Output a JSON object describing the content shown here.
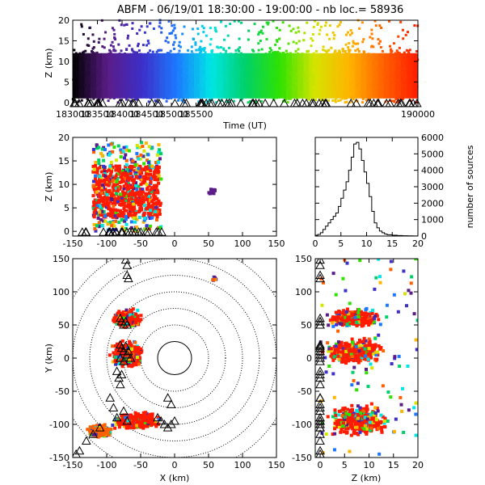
{
  "chart_data": {
    "title": "ABFM - 06/19/01 18:30:00 - 19:00:00 - nb loc.=  58936",
    "panels": [
      {
        "id": "time_height",
        "type": "scatter",
        "xlabel": "Time (UT)",
        "ylabel": "Z (km)",
        "xlim": [
          183000,
          190000
        ],
        "ylim": [
          -1,
          20
        ],
        "x_ticks": [
          183000,
          183500,
          184000,
          184500,
          185000,
          185500,
          190000
        ],
        "y_ticks": [
          0,
          5,
          10,
          15,
          20
        ],
        "color_by": "time",
        "colormap": [
          "#000000",
          "#5a1c86",
          "#3d2fc8",
          "#1d78ff",
          "#00e6e6",
          "#00d06a",
          "#2fe200",
          "#d4e400",
          "#ffb400",
          "#ff6000",
          "#ff1a00"
        ],
        "dense_band_z": [
          0,
          13
        ],
        "sparse_points_z_range": [
          13,
          20
        ]
      },
      {
        "id": "xz_projection",
        "type": "scatter",
        "xlabel": "",
        "ylabel": "Z (km)",
        "xlim": [
          -150,
          150
        ],
        "ylim": [
          -1,
          20
        ],
        "x_ticks": [
          -150,
          -100,
          -50,
          0,
          50,
          100,
          150
        ],
        "y_ticks": [
          0,
          5,
          10,
          15,
          20
        ],
        "clusters": [
          {
            "x": [
              -120,
              -20
            ],
            "z": [
              0,
              19
            ],
            "dominant_color": "#ff1a00"
          },
          {
            "x": [
              50,
              60
            ],
            "z": [
              8,
              9
            ],
            "dominant_color": "#5a1c86"
          }
        ]
      },
      {
        "id": "height_histogram",
        "type": "line",
        "xlabel": "",
        "ylabel": "number of sources",
        "xlim": [
          0,
          20
        ],
        "ylim": [
          0,
          6000
        ],
        "x_ticks": [
          0,
          5,
          10,
          15,
          20
        ],
        "y_ticks": [
          0,
          1000,
          2000,
          3000,
          4000,
          5000,
          6000
        ],
        "x": [
          0,
          0.5,
          1,
          1.5,
          2,
          2.5,
          3,
          3.5,
          4,
          4.5,
          5,
          5.5,
          6,
          6.5,
          7,
          7.5,
          8,
          8.5,
          9,
          9.5,
          10,
          10.5,
          11,
          11.5,
          12,
          12.5,
          13,
          13.5,
          14,
          15,
          16,
          17,
          18,
          19,
          20
        ],
        "y": [
          50,
          100,
          200,
          400,
          600,
          800,
          1000,
          1200,
          1400,
          1800,
          2300,
          2800,
          3300,
          4000,
          4800,
          5600,
          5700,
          5300,
          4600,
          3900,
          3200,
          2400,
          1500,
          800,
          500,
          300,
          200,
          120,
          80,
          50,
          30,
          20,
          10,
          5,
          0
        ]
      },
      {
        "id": "plan_view",
        "type": "scatter",
        "xlabel": "X (km)",
        "ylabel": "Y (km)",
        "xlim": [
          -150,
          150
        ],
        "ylim": [
          -150,
          150
        ],
        "x_ticks": [
          -150,
          -100,
          -50,
          0,
          50,
          100,
          150
        ],
        "y_ticks": [
          -150,
          -100,
          -50,
          0,
          50,
          100,
          150
        ],
        "range_rings_km": [
          25,
          50,
          75,
          100,
          125,
          150,
          175
        ],
        "solid_ring_km": 25,
        "stations": [
          [
            -72,
            148
          ],
          [
            -70,
            140
          ],
          [
            -70,
            125
          ],
          [
            -68,
            120
          ],
          [
            -80,
            60
          ],
          [
            -78,
            55
          ],
          [
            -75,
            50
          ],
          [
            -72,
            55
          ],
          [
            -70,
            50
          ],
          [
            -80,
            20
          ],
          [
            -78,
            15
          ],
          [
            -75,
            10
          ],
          [
            -72,
            18
          ],
          [
            -70,
            5
          ],
          [
            -68,
            10
          ],
          [
            -65,
            0
          ],
          [
            -80,
            0
          ],
          [
            -75,
            -5
          ],
          [
            -85,
            -20
          ],
          [
            -82,
            -30
          ],
          [
            -80,
            -40
          ],
          [
            -78,
            -25
          ],
          [
            -95,
            -60
          ],
          [
            -90,
            -75
          ],
          [
            -85,
            -90
          ],
          [
            -75,
            -80
          ],
          [
            -70,
            -95
          ],
          [
            -110,
            -105
          ],
          [
            -120,
            -115
          ],
          [
            -130,
            -125
          ],
          [
            -140,
            -140
          ],
          [
            -145,
            -145
          ],
          [
            -20,
            -95
          ],
          [
            -15,
            -100
          ],
          [
            -10,
            -105
          ],
          [
            -5,
            -100
          ],
          [
            -25,
            -90
          ],
          [
            0,
            -95
          ],
          [
            -10,
            -60
          ],
          [
            -5,
            -70
          ]
        ],
        "clusters": [
          {
            "x_center": -70,
            "y_center": 60,
            "x_span": 50,
            "y_span": 30,
            "color": "#ff1a00"
          },
          {
            "x_center": -70,
            "y_center": 5,
            "x_span": 55,
            "y_span": 45,
            "color": "#ff1a00"
          },
          {
            "x_center": -55,
            "y_center": -95,
            "x_span": 85,
            "y_span": 30,
            "color": "#ff1a00"
          },
          {
            "x_center": -110,
            "y_center": -110,
            "x_span": 40,
            "y_span": 20,
            "color": "#ff6000"
          },
          {
            "x_center": 58,
            "y_center": 120,
            "x_span": 8,
            "y_span": 8,
            "color": "#5a1c86"
          }
        ]
      },
      {
        "id": "zy_projection",
        "type": "scatter",
        "xlabel": "Z (km)",
        "ylabel": "",
        "xlim": [
          -1,
          20
        ],
        "ylim": [
          -150,
          150
        ],
        "x_ticks": [
          0,
          5,
          10,
          15,
          20
        ],
        "y_ticks": [
          -150,
          -100,
          -50,
          0,
          50,
          100,
          150
        ],
        "clusters": [
          {
            "z_center": 7,
            "y_center": 60,
            "z_span": 12,
            "y_span": 30,
            "color": "#ff1a00"
          },
          {
            "z_center": 7,
            "y_center": 10,
            "z_span": 14,
            "y_span": 45,
            "color": "#ff1a00"
          },
          {
            "z_center": 8,
            "y_center": -95,
            "z_span": 14,
            "y_span": 55,
            "color": "#ff1a00"
          }
        ]
      }
    ]
  }
}
